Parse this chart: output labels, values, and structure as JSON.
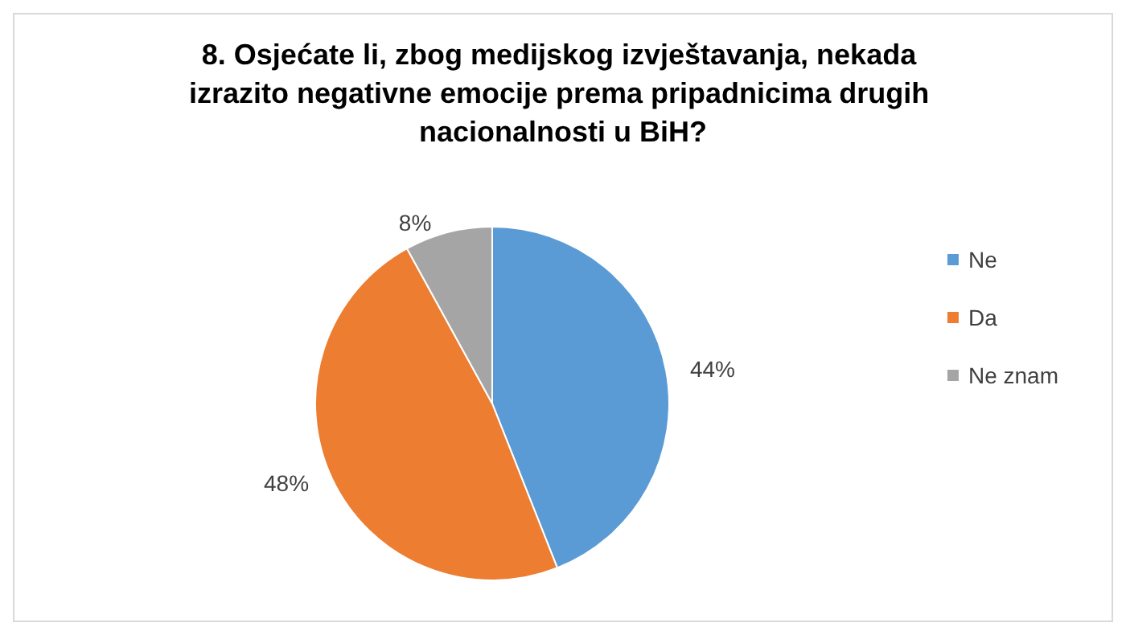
{
  "chart_data": {
    "type": "pie",
    "title": "8. Osjećate li, zbog medijskog izvještavanja, nekada izrazito negativne emocije prema pripadnicima drugih nacionalnosti u BiH?",
    "categories": [
      "Ne",
      "Da",
      "Ne znam"
    ],
    "values": [
      44,
      48,
      8
    ],
    "colors": [
      "#5b9bd5",
      "#ed7d31",
      "#a5a5a5"
    ],
    "value_labels": [
      "44%",
      "48%",
      "8%"
    ],
    "legend": "right"
  }
}
